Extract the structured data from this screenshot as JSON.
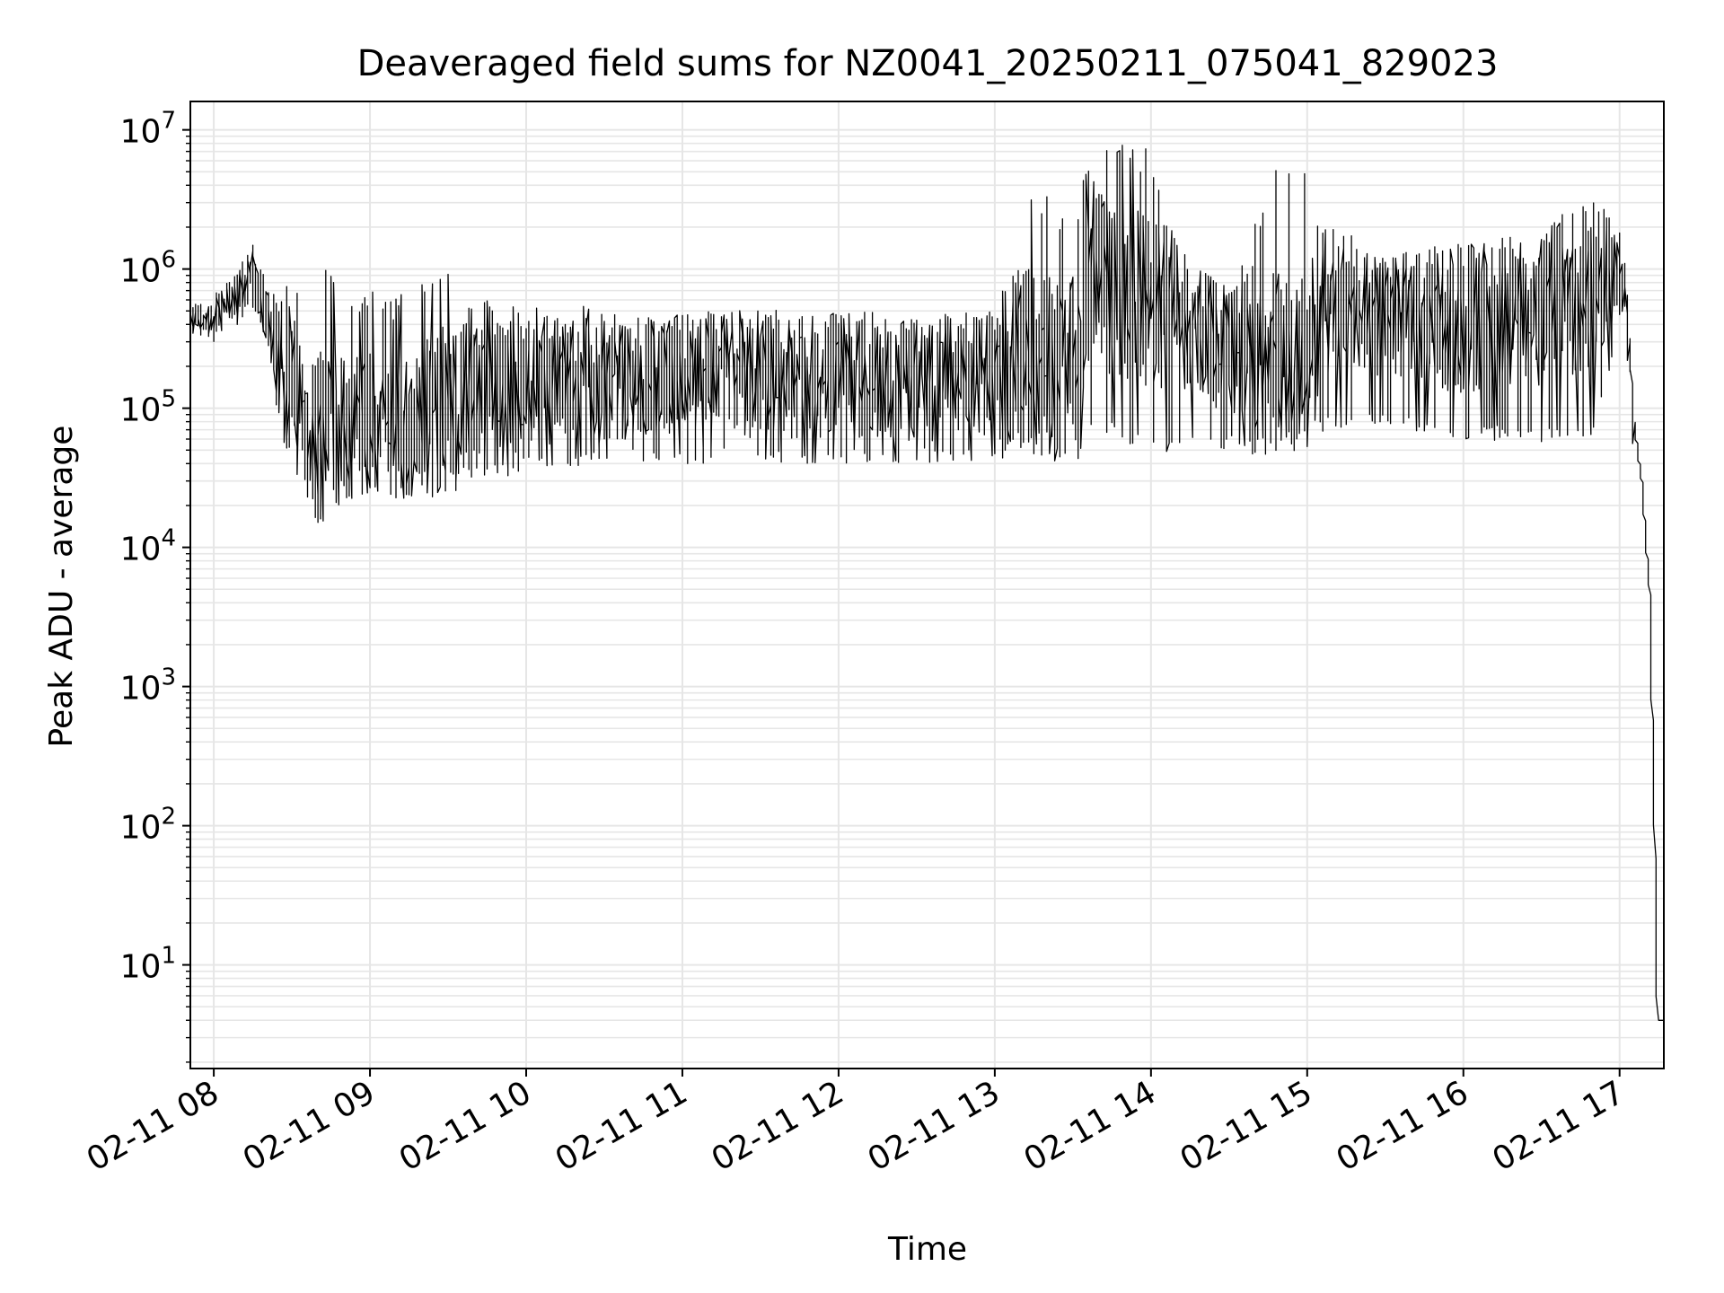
{
  "chart_data": {
    "type": "line",
    "title": "Deaveraged field sums for NZ0041_20250211_075041_829023",
    "xlabel": "Time",
    "ylabel": "Peak ADU - average",
    "yscale": "log",
    "ylim": [
      1.8,
      16000000
    ],
    "xlim": [
      "2025-02-11 07:51",
      "2025-02-11 17:17"
    ],
    "grid": true,
    "line_color": "#000000",
    "x_ticks": [
      "02-11 08",
      "02-11 09",
      "02-11 10",
      "02-11 11",
      "02-11 12",
      "02-11 13",
      "02-11 14",
      "02-11 15",
      "02-11 16",
      "02-11 17"
    ],
    "y_tick_exponents": [
      1,
      2,
      3,
      4,
      5,
      6,
      7
    ],
    "y_tick_base": "10",
    "series": [
      {
        "x": [
          "2025-02-11 07:51",
          "2025-02-11 08:00",
          "2025-02-11 08:10",
          "2025-02-11 08:15",
          "2025-02-11 08:20",
          "2025-02-11 08:30",
          "2025-02-11 08:40",
          "2025-02-11 08:50",
          "2025-02-11 09:00",
          "2025-02-11 09:15",
          "2025-02-11 09:30",
          "2025-02-11 09:45",
          "2025-02-11 10:00",
          "2025-02-11 10:30",
          "2025-02-11 11:00",
          "2025-02-11 11:30",
          "2025-02-11 12:00",
          "2025-02-11 12:30",
          "2025-02-11 13:00",
          "2025-02-11 13:10",
          "2025-02-11 13:30",
          "2025-02-11 13:40",
          "2025-02-11 14:00",
          "2025-02-11 14:15",
          "2025-02-11 14:30",
          "2025-02-11 14:45",
          "2025-02-11 15:00",
          "2025-02-11 15:10",
          "2025-02-11 15:30",
          "2025-02-11 16:00",
          "2025-02-11 16:30",
          "2025-02-11 16:50",
          "2025-02-11 17:00",
          "2025-02-11 17:03",
          "2025-02-11 17:06",
          "2025-02-11 17:09",
          "2025-02-11 17:12",
          "2025-02-11 17:14",
          "2025-02-11 17:15",
          "2025-02-11 17:17"
        ],
        "y": [
          450000,
          420000,
          700000,
          900000,
          550000,
          150000,
          60000,
          70000,
          80000,
          70000,
          100000,
          120000,
          150000,
          160000,
          170000,
          170000,
          170000,
          160000,
          170000,
          250000,
          200000,
          800000,
          600000,
          400000,
          250000,
          250000,
          200000,
          700000,
          450000,
          450000,
          550000,
          800000,
          1000000,
          700000,
          80000,
          30000,
          5000,
          100,
          4,
          4
        ],
        "y_low": [
          300000,
          300000,
          400000,
          500000,
          200000,
          40000,
          35000,
          35000,
          35000,
          35000,
          30000,
          30000,
          35000,
          40000,
          40000,
          40000,
          40000,
          40000,
          40000,
          50000,
          35000,
          70000,
          45000,
          50000,
          50000,
          45000,
          60000,
          70000,
          70000,
          60000,
          55000,
          60000,
          300000,
          300000,
          80000,
          30000,
          5000,
          100,
          4,
          4
        ],
        "y_high": [
          600000,
          650000,
          1000000,
          1900000,
          800000,
          800000,
          1600000,
          650000,
          700000,
          700000,
          1200000,
          600000,
          580000,
          560000,
          520000,
          520000,
          520000,
          520000,
          500000,
          3800000,
          3000000,
          8000000,
          7500000,
          700000,
          700000,
          4500000,
          8000000,
          1200000,
          1000000,
          1400000,
          1500000,
          2100000,
          2000000,
          1000000,
          80000,
          30000,
          5000,
          100,
          4,
          4
        ]
      }
    ]
  }
}
